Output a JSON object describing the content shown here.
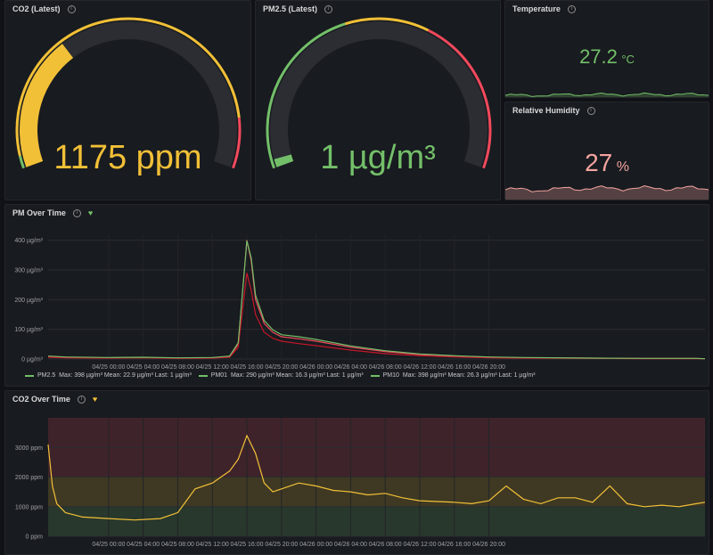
{
  "colors": {
    "green": "#73bf69",
    "yellow": "#f2c037",
    "red": "#f2495c",
    "pink": "#f4a4a0",
    "panel_bg": "#181b1f",
    "page_bg": "#111217"
  },
  "panels": {
    "co2_gauge": {
      "title": "CO2 (Latest)",
      "value": "1175 ppm",
      "fraction": 0.33,
      "color": "#f2c037"
    },
    "pm25_gauge": {
      "title": "PM2.5 (Latest)",
      "value": "1 µg/m³",
      "fraction": 0.02,
      "color": "#73bf69"
    },
    "temperature": {
      "title": "Temperature",
      "value": "27.2",
      "unit": "°C",
      "color": "#73bf69"
    },
    "humidity": {
      "title": "Relative Humidity",
      "value": "27",
      "unit": "%",
      "color": "#f4a4a0"
    },
    "pm_time": {
      "title": "PM Over Time",
      "legend": {
        "pm25": {
          "name": "PM2.5",
          "stats": "Max: 398 µg/m³   Mean: 22.9 µg/m³   Last: 1 µg/m³"
        },
        "pm01": {
          "name": "PM01",
          "stats": "Max: 290 µg/m³   Mean: 16.3 µg/m³   Last: 1 µg/m³"
        },
        "pm10": {
          "name": "PM10",
          "stats": "Max: 398 µg/m³   Mean: 26.3 µg/m³   Last: 1 µg/m³"
        }
      }
    },
    "co2_time": {
      "title": "CO2 Over Time"
    }
  },
  "chart_data": [
    {
      "type": "line",
      "title": "PM Over Time",
      "x_ticks": [
        "04/25 00:00",
        "04/25 04:00",
        "04/25 08:00",
        "04/25 12:00",
        "04/25 16:00",
        "04/25 20:00",
        "04/26 00:00",
        "04/26 04:00",
        "04/26 08:00",
        "04/26 12:00",
        "04/26 16:00",
        "04/26 20:00"
      ],
      "y_ticks": [
        "0 µg/m³",
        "100 µg/m³",
        "200 µg/m³",
        "300 µg/m³",
        "400 µg/m³"
      ],
      "ylim": [
        0,
        420
      ],
      "x_range_hours": [
        -7,
        69
      ],
      "series": [
        {
          "name": "PM2.5",
          "color": "#f2495c",
          "x": [
            -7,
            -5,
            0,
            4,
            8,
            12,
            14,
            15,
            16,
            16.5,
            17,
            18,
            19,
            20,
            22,
            24,
            28,
            32,
            36,
            40,
            44,
            48,
            56,
            62,
            66,
            68,
            69
          ],
          "y": [
            8,
            6,
            4,
            5,
            3,
            4,
            8,
            50,
            400,
            330,
            200,
            120,
            90,
            75,
            68,
            60,
            40,
            25,
            15,
            10,
            6,
            4,
            3,
            2,
            2,
            2,
            1
          ]
        },
        {
          "name": "PM01",
          "color": "#c4162a",
          "x": [
            -7,
            -5,
            0,
            4,
            8,
            12,
            14,
            15,
            16,
            16.5,
            17,
            18,
            19,
            20,
            22,
            24,
            28,
            32,
            36,
            40,
            44,
            48,
            56,
            62,
            66,
            68,
            69
          ],
          "y": [
            6,
            4,
            3,
            4,
            2,
            3,
            6,
            40,
            290,
            230,
            150,
            90,
            70,
            60,
            52,
            45,
            30,
            18,
            11,
            7,
            4,
            3,
            2,
            1,
            1,
            1,
            1
          ]
        },
        {
          "name": "PM10",
          "color": "#73bf69",
          "x": [
            -7,
            -5,
            0,
            4,
            8,
            12,
            14,
            15,
            16,
            16.5,
            17,
            18,
            19,
            20,
            22,
            24,
            28,
            32,
            36,
            40,
            44,
            48,
            56,
            62,
            66,
            68,
            69
          ],
          "y": [
            10,
            7,
            5,
            6,
            4,
            5,
            10,
            55,
            398,
            340,
            215,
            130,
            98,
            82,
            75,
            66,
            44,
            28,
            17,
            11,
            7,
            5,
            3,
            2,
            2,
            2,
            1
          ]
        }
      ]
    },
    {
      "type": "line",
      "title": "CO2 Over Time",
      "x_ticks": [
        "04/25 00:00",
        "04/25 04:00",
        "04/25 08:00",
        "04/25 12:00",
        "04/25 16:00",
        "04/25 20:00",
        "04/26 00:00",
        "04/26 04:00",
        "04/26 08:00",
        "04/26 12:00",
        "04/26 16:00",
        "04/26 20:00"
      ],
      "y_ticks": [
        "0 ppm",
        "1000 ppm",
        "2000 ppm",
        "3000 ppm"
      ],
      "ylim": [
        0,
        4000
      ],
      "x_range_hours": [
        -7,
        69
      ],
      "thresholds": [
        {
          "from": 0,
          "to": 1000,
          "color": "#73bf69"
        },
        {
          "from": 1000,
          "to": 2000,
          "color": "#f2c037"
        },
        {
          "from": 2000,
          "to": 4000,
          "color": "#f2495c"
        }
      ],
      "series": [
        {
          "name": "CO2",
          "color": "#f2c037",
          "x": [
            -7,
            -6.5,
            -6,
            -5,
            -3,
            0,
            3,
            6,
            8,
            10,
            12,
            13,
            14,
            15,
            16,
            17,
            18,
            19,
            20,
            22,
            24,
            26,
            28,
            30,
            32,
            34,
            36,
            40,
            42,
            44,
            46,
            48,
            50,
            52,
            54,
            56,
            58,
            60,
            62,
            64,
            66,
            68,
            69
          ],
          "y": [
            3100,
            1700,
            1100,
            800,
            650,
            600,
            550,
            600,
            800,
            1600,
            1800,
            2000,
            2200,
            2600,
            3400,
            2800,
            1800,
            1500,
            1600,
            1800,
            1700,
            1550,
            1500,
            1400,
            1450,
            1300,
            1200,
            1150,
            1100,
            1200,
            1700,
            1250,
            1100,
            1300,
            1300,
            1150,
            1700,
            1100,
            1000,
            1050,
            1000,
            1100,
            1150
          ]
        }
      ]
    }
  ]
}
